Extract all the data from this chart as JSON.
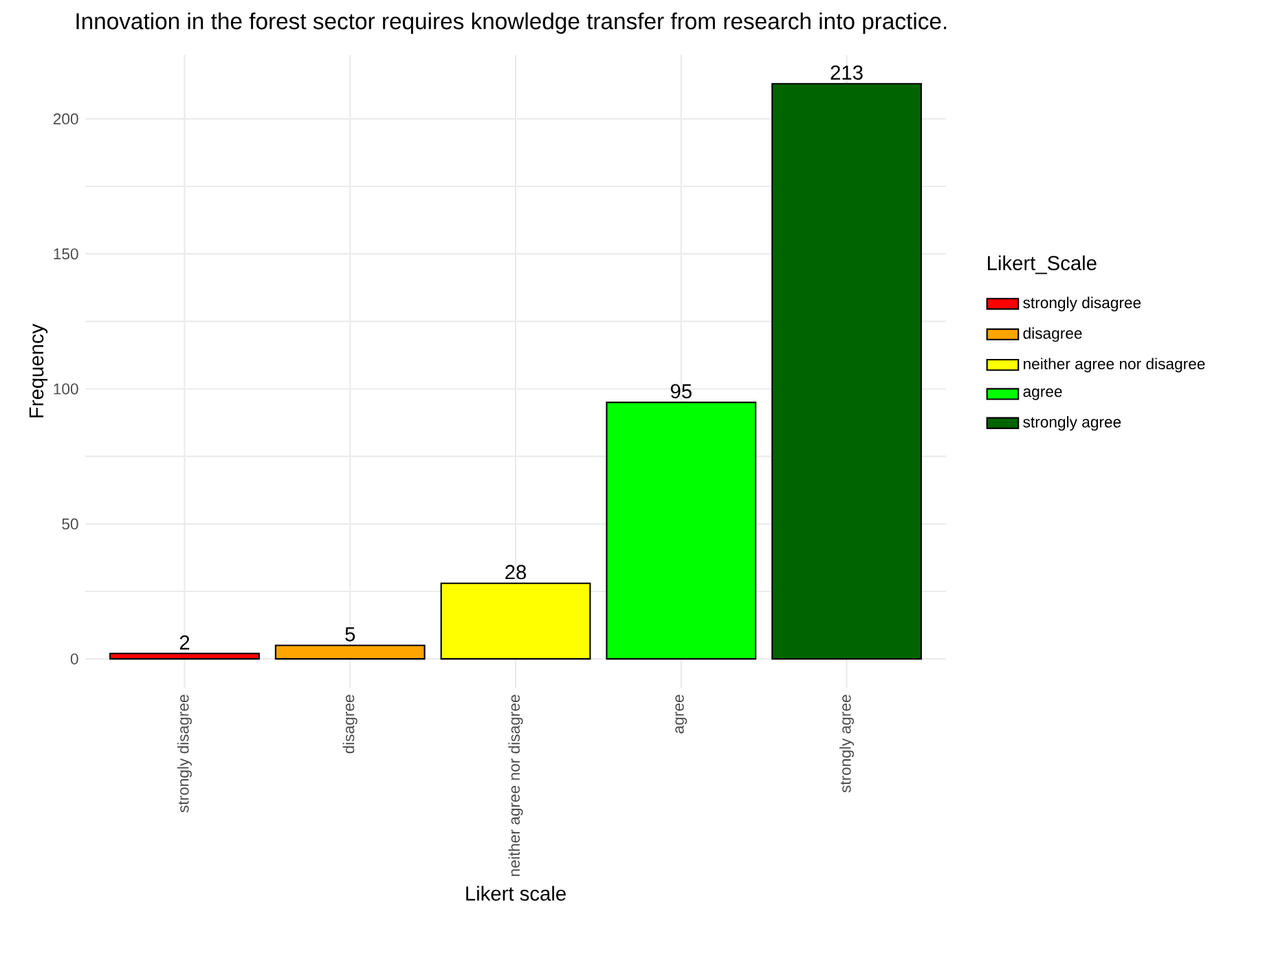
{
  "chart_data": {
    "type": "bar",
    "title": "Innovation in the forest sector requires knowledge transfer from research into practice.",
    "xlabel": "Likert scale",
    "ylabel": "Frequency",
    "legend_title": "Likert_Scale",
    "categories": [
      "strongly disagree",
      "disagree",
      "neither agree nor disagree",
      "agree",
      "strongly agree"
    ],
    "series": [
      {
        "name": "strongly disagree",
        "color": "#ff0000",
        "values": [
          2,
          null,
          null,
          null,
          null
        ]
      },
      {
        "name": "disagree",
        "color": "#ffa500",
        "values": [
          null,
          5,
          null,
          null,
          null
        ]
      },
      {
        "name": "neither agree nor disagree",
        "color": "#ffff00",
        "values": [
          null,
          null,
          28,
          null,
          null
        ]
      },
      {
        "name": "agree",
        "color": "#00ff00",
        "values": [
          null,
          null,
          null,
          95,
          null
        ]
      },
      {
        "name": "strongly agree",
        "color": "#006400",
        "values": [
          null,
          null,
          null,
          null,
          213
        ]
      }
    ],
    "ylim": [
      -10.65,
      223.65
    ],
    "yticks": [
      0,
      {
        "value": 25,
        "label": null
      },
      50,
      {
        "value": 75,
        "label": null
      },
      100,
      {
        "value": 125,
        "label": null
      },
      150,
      {
        "value": 175,
        "label": null
      },
      200
    ],
    "grid": true,
    "legend": "right",
    "data_labels": true
  }
}
